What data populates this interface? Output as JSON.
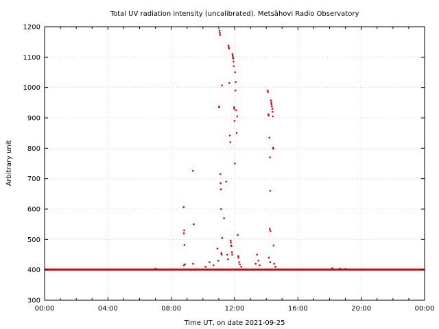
{
  "chart_data": {
    "type": "scatter",
    "title": "Total UV radiation intensity (uncalibrated). Metsähovi Radio Observatory",
    "xlabel": "Time UT, on date 2021-09-25",
    "ylabel": "Arbitrary unit",
    "xlim": [
      "00:00",
      "24:00"
    ],
    "ylim": [
      300,
      1200
    ],
    "x_ticks": [
      "00:00",
      "04:00",
      "08:00",
      "12:00",
      "16:00",
      "20:00",
      "00:00"
    ],
    "y_ticks": [
      300,
      400,
      500,
      600,
      700,
      800,
      900,
      1000,
      1100,
      1200
    ],
    "grid": true,
    "marker_color": "#e00000",
    "baseline": {
      "value": 401,
      "from": "00:00",
      "to": "24:00"
    },
    "series": [
      {
        "points": [
          [
            "08:47",
            606
          ],
          [
            "08:49",
            530
          ],
          [
            "08:48",
            520
          ],
          [
            "08:50",
            482
          ],
          [
            "08:48",
            415
          ],
          [
            "08:52",
            418
          ],
          [
            "09:22",
            726
          ],
          [
            "09:25",
            550
          ],
          [
            "09:23",
            420
          ],
          [
            "10:10",
            410
          ],
          [
            "10:25",
            425
          ],
          [
            "10:40",
            415
          ],
          [
            "10:55",
            470
          ],
          [
            "10:58",
            430
          ],
          [
            "11:01",
            935
          ],
          [
            "11:02",
            937
          ],
          [
            "11:03",
            1187
          ],
          [
            "11:04",
            1180
          ],
          [
            "11:05",
            1173
          ],
          [
            "11:06",
            715
          ],
          [
            "11:07",
            685
          ],
          [
            "11:08",
            665
          ],
          [
            "11:09",
            600
          ],
          [
            "11:10",
            455
          ],
          [
            "11:11",
            450
          ],
          [
            "11:12",
            1007
          ],
          [
            "11:13",
            505
          ],
          [
            "11:20",
            570
          ],
          [
            "11:28",
            690
          ],
          [
            "11:32",
            450
          ],
          [
            "11:35",
            435
          ],
          [
            "11:37",
            1138
          ],
          [
            "11:38",
            1132
          ],
          [
            "11:39",
            1128
          ],
          [
            "11:40",
            1015
          ],
          [
            "11:42",
            842
          ],
          [
            "11:44",
            820
          ],
          [
            "11:45",
            496
          ],
          [
            "11:46",
            490
          ],
          [
            "11:47",
            480
          ],
          [
            "11:48",
            478
          ],
          [
            "11:50",
            458
          ],
          [
            "11:51",
            450
          ],
          [
            "11:52",
            1110
          ],
          [
            "11:53",
            1105
          ],
          [
            "11:54",
            1100
          ],
          [
            "11:55",
            1095
          ],
          [
            "11:56",
            1085
          ],
          [
            "11:57",
            1070
          ],
          [
            "11:58",
            935
          ],
          [
            "11:59",
            930
          ],
          [
            "12:00",
            890
          ],
          [
            "12:01",
            750
          ],
          [
            "12:02",
            1050
          ],
          [
            "12:03",
            990
          ],
          [
            "12:04",
            1018
          ],
          [
            "12:06",
            925
          ],
          [
            "12:08",
            850
          ],
          [
            "12:10",
            905
          ],
          [
            "12:12",
            515
          ],
          [
            "12:14",
            445
          ],
          [
            "12:15",
            440
          ],
          [
            "12:17",
            425
          ],
          [
            "12:20",
            418
          ],
          [
            "12:25",
            410
          ],
          [
            "13:20",
            420
          ],
          [
            "13:25",
            450
          ],
          [
            "13:30",
            430
          ],
          [
            "13:35",
            415
          ],
          [
            "14:05",
            990
          ],
          [
            "14:07",
            985
          ],
          [
            "14:08",
            912
          ],
          [
            "14:09",
            908
          ],
          [
            "14:12",
            835
          ],
          [
            "14:14",
            770
          ],
          [
            "14:15",
            660
          ],
          [
            "14:13",
            535
          ],
          [
            "14:16",
            528
          ],
          [
            "14:18",
            957
          ],
          [
            "14:19",
            950
          ],
          [
            "14:20",
            945
          ],
          [
            "14:21",
            938
          ],
          [
            "14:23",
            930
          ],
          [
            "14:24",
            920
          ],
          [
            "14:25",
            905
          ],
          [
            "14:26",
            802
          ],
          [
            "14:27",
            798
          ],
          [
            "14:28",
            480
          ],
          [
            "14:10",
            440
          ],
          [
            "14:15",
            425
          ],
          [
            "14:30",
            420
          ],
          [
            "14:35",
            410
          ],
          [
            "18:10",
            405
          ],
          [
            "18:40",
            404
          ],
          [
            "19:00",
            403
          ],
          [
            "07:00",
            404
          ]
        ]
      }
    ]
  }
}
